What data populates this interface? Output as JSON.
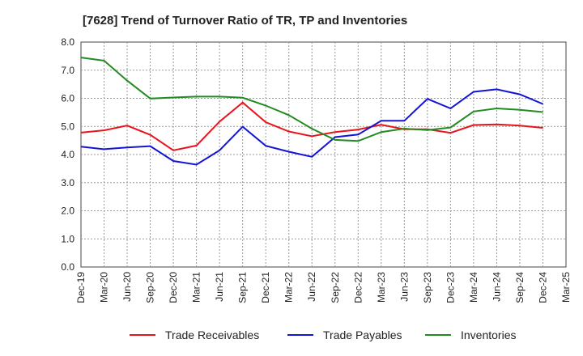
{
  "chart_data": {
    "type": "line",
    "title": "[7628]  Trend of Turnover Ratio of TR, TP and Inventories",
    "xlabel": "",
    "ylabel": "",
    "ylim": [
      0,
      8
    ],
    "yticks": [
      "0.0",
      "1.0",
      "2.0",
      "3.0",
      "4.0",
      "5.0",
      "6.0",
      "7.0",
      "8.0"
    ],
    "categories": [
      "Dec-19",
      "Mar-20",
      "Jun-20",
      "Sep-20",
      "Dec-20",
      "Mar-21",
      "Jun-21",
      "Sep-21",
      "Dec-21",
      "Mar-22",
      "Jun-22",
      "Sep-22",
      "Dec-22",
      "Mar-23",
      "Jun-23",
      "Sep-23",
      "Dec-23",
      "Mar-24",
      "Jun-24",
      "Sep-24",
      "Dec-24",
      "Mar-25"
    ],
    "grid": true,
    "legend_position": "bottom",
    "series": [
      {
        "name": "Trade Receivables",
        "color": "#e8141b",
        "values": [
          4.78,
          4.86,
          5.03,
          4.7,
          4.15,
          4.32,
          5.17,
          5.85,
          5.15,
          4.82,
          4.65,
          4.8,
          4.89,
          5.06,
          4.9,
          4.9,
          4.77,
          5.05,
          5.07,
          5.03,
          4.95,
          null
        ]
      },
      {
        "name": "Trade Payables",
        "color": "#1414d6",
        "values": [
          4.28,
          4.19,
          4.25,
          4.3,
          3.77,
          3.64,
          4.15,
          4.99,
          4.31,
          4.1,
          3.92,
          4.62,
          4.71,
          5.2,
          5.2,
          5.98,
          5.64,
          6.23,
          6.32,
          6.14,
          5.8,
          null
        ]
      },
      {
        "name": "Inventories",
        "color": "#228b22",
        "values": [
          7.45,
          7.34,
          6.63,
          5.99,
          6.03,
          6.06,
          6.06,
          6.02,
          5.74,
          5.4,
          4.92,
          4.52,
          4.48,
          4.8,
          4.92,
          4.87,
          4.96,
          5.53,
          5.64,
          5.59,
          5.51,
          null
        ]
      }
    ]
  }
}
